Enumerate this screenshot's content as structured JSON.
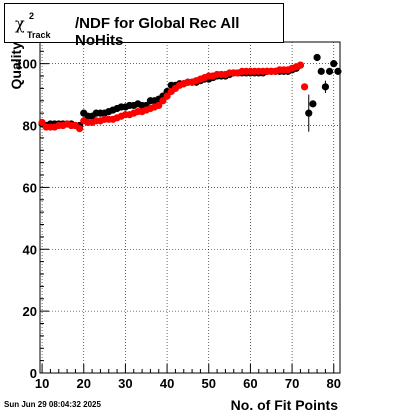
{
  "title": {
    "symbol": "χ",
    "superscript": "2",
    "subscript": "Track",
    "rest": "/NDF for Global Rec All NoHits"
  },
  "footer": {
    "timestamp": "Sun Jun 29 08:04:32 2025"
  },
  "chart_data": {
    "type": "scatter",
    "xlabel": "No. of Fit Points",
    "ylabel": "Quality",
    "xlim": [
      9.5,
      81.5
    ],
    "ylim": [
      0,
      107
    ],
    "xticks": [
      10,
      20,
      30,
      40,
      50,
      60,
      70,
      80
    ],
    "yticks": [
      0,
      20,
      40,
      60,
      80,
      100
    ],
    "grid": true,
    "colors": {
      "black_series": "#000000",
      "red_series": "#ff0000"
    },
    "series": [
      {
        "color": "black",
        "x": [
          10,
          11,
          12,
          13,
          14,
          15,
          16,
          17,
          18,
          19,
          20,
          21,
          22,
          23,
          24,
          25,
          26,
          27,
          28,
          29,
          30,
          31,
          32,
          33,
          34,
          35,
          36,
          37,
          38,
          39,
          40,
          41,
          42,
          43,
          44,
          45,
          46,
          47,
          48,
          49,
          50,
          51,
          52,
          53,
          54,
          55,
          56,
          57,
          58,
          59,
          60,
          61,
          62,
          63,
          64,
          65,
          66,
          67,
          68,
          69,
          70,
          71,
          72,
          74,
          75,
          76,
          77,
          78,
          79,
          80,
          81
        ],
        "y": [
          80.5,
          80,
          80.5,
          80.5,
          80.5,
          80.5,
          80.5,
          80.5,
          80,
          80,
          84,
          83,
          83,
          84,
          84,
          84,
          84.5,
          85,
          85.5,
          86,
          86,
          86.5,
          86.5,
          87,
          86.5,
          86.5,
          88,
          88,
          88.5,
          89.5,
          91,
          93,
          93,
          93.5,
          93.5,
          94,
          94,
          94,
          94.5,
          95,
          95,
          95.5,
          96,
          96,
          96,
          96.5,
          97,
          97,
          97,
          97,
          97,
          97,
          97,
          97,
          97.5,
          97.5,
          97.5,
          97.5,
          97.5,
          97.5,
          98,
          98.5,
          99.5,
          84,
          87,
          102,
          97.5,
          92.5,
          97.5,
          100,
          97.5
        ],
        "yerr": [
          0,
          0,
          0,
          0,
          0,
          0,
          0,
          0,
          0,
          0,
          0,
          0,
          0,
          0,
          0,
          0,
          0,
          0,
          0,
          0,
          0,
          0,
          0,
          0,
          0,
          0,
          0,
          0,
          0,
          0,
          0,
          0,
          0,
          0,
          0,
          0,
          0,
          0,
          0,
          0,
          0,
          0,
          0,
          0,
          0,
          0,
          0,
          0,
          0,
          0,
          0,
          0,
          0,
          0,
          0,
          0,
          0,
          0,
          0,
          0,
          0,
          0,
          0,
          6,
          0,
          0,
          0,
          2,
          0,
          0,
          0
        ]
      },
      {
        "color": "red",
        "x": [
          10,
          11,
          12,
          13,
          14,
          15,
          16,
          17,
          18,
          19,
          20,
          21,
          22,
          23,
          24,
          25,
          26,
          27,
          28,
          29,
          30,
          31,
          32,
          33,
          34,
          35,
          36,
          37,
          38,
          39,
          40,
          41,
          42,
          43,
          44,
          45,
          46,
          47,
          48,
          49,
          50,
          51,
          52,
          53,
          54,
          55,
          56,
          57,
          58,
          59,
          60,
          61,
          62,
          63,
          64,
          65,
          66,
          67,
          68,
          69,
          70,
          71,
          72,
          73
        ],
        "y": [
          81,
          79.5,
          79.5,
          79.5,
          80,
          80,
          80.5,
          80,
          80,
          79,
          81.5,
          81,
          81,
          81.5,
          81.5,
          82,
          82,
          82,
          82.5,
          83,
          83.5,
          83.5,
          84,
          84.5,
          84.5,
          85,
          85.5,
          86,
          86.5,
          88,
          89.5,
          91,
          92,
          93,
          93.5,
          94,
          94,
          94.5,
          95,
          95.5,
          96,
          96,
          96.5,
          96.5,
          96.5,
          97,
          97,
          97,
          97.5,
          97.5,
          97.5,
          97.5,
          97.5,
          97.5,
          97.5,
          97.5,
          97.5,
          98,
          98,
          98,
          98.5,
          99,
          99.5,
          92.5
        ],
        "yerr": [
          0,
          0,
          0,
          0,
          0,
          0,
          0,
          0,
          0,
          0,
          0,
          0,
          0,
          0,
          0,
          0,
          0,
          0,
          0,
          0,
          0,
          0,
          0,
          0,
          0,
          0,
          0,
          0,
          0,
          0,
          0,
          0,
          0,
          0,
          0,
          0,
          0,
          0,
          0,
          0,
          0,
          0,
          0,
          0,
          0,
          0,
          0,
          0,
          0,
          0,
          0,
          0,
          0,
          0,
          0,
          0,
          0,
          0,
          0,
          0,
          0,
          0,
          0,
          0
        ]
      }
    ]
  }
}
